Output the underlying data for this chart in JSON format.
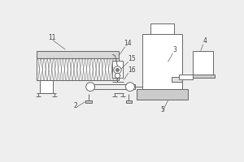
{
  "bg_color": "#eeeeee",
  "line_color": "#666666",
  "label_color": "#444444",
  "label_fs": 5.5,
  "lw": 0.7
}
